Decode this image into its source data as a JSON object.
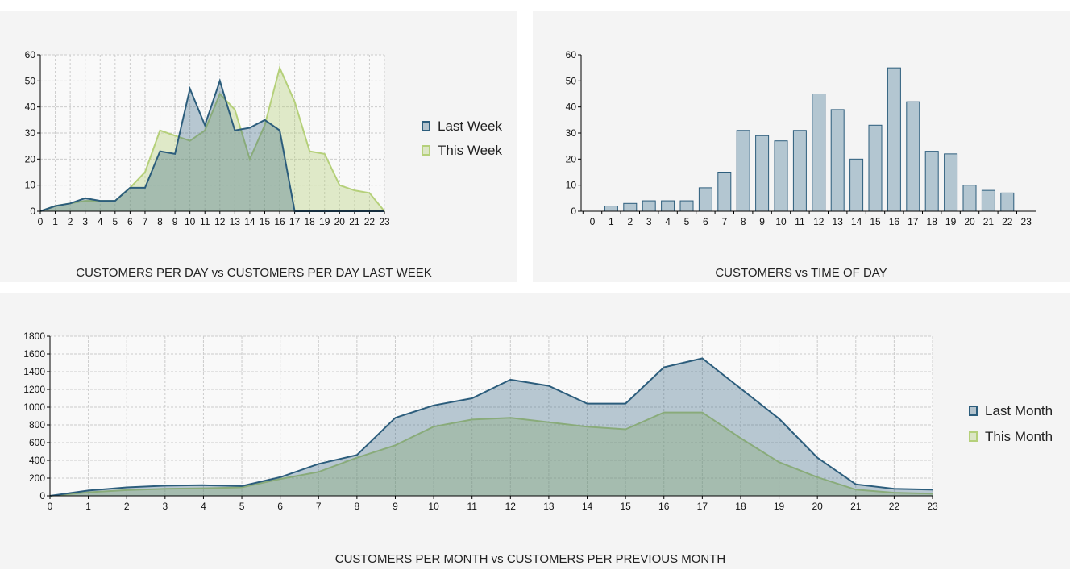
{
  "colors": {
    "last": "#2c5d7c",
    "this": "#b5d07a",
    "bar_fill": "#b3c6d1"
  },
  "chart_data": [
    {
      "type": "area",
      "title": "CUSTOMERS PER DAY vs CUSTOMERS PER DAY LAST WEEK",
      "x": [
        0,
        1,
        2,
        3,
        4,
        5,
        6,
        7,
        8,
        9,
        10,
        11,
        12,
        13,
        14,
        15,
        16,
        17,
        18,
        19,
        20,
        21,
        22,
        23
      ],
      "ylim": [
        0,
        60
      ],
      "yticks": [
        0,
        10,
        20,
        30,
        40,
        50,
        60
      ],
      "grid": true,
      "legend": "right",
      "series": [
        {
          "name": "Last Week",
          "values": [
            0,
            2,
            3,
            5,
            4,
            4,
            9,
            9,
            23,
            22,
            47,
            33,
            50,
            31,
            32,
            35,
            31,
            0,
            0,
            0,
            0,
            0,
            0,
            0
          ]
        },
        {
          "name": "This Week",
          "values": [
            0,
            2,
            3,
            4,
            4,
            4,
            9,
            15,
            31,
            29,
            27,
            31,
            45,
            39,
            20,
            33,
            55,
            42,
            23,
            22,
            10,
            8,
            7,
            0
          ]
        }
      ]
    },
    {
      "type": "bar",
      "title": "CUSTOMERS vs TIME OF DAY",
      "categories": [
        "0",
        "1",
        "2",
        "3",
        "4",
        "5",
        "6",
        "7",
        "8",
        "9",
        "10",
        "11",
        "12",
        "13",
        "14",
        "15",
        "16",
        "17",
        "18",
        "19",
        "20",
        "21",
        "22",
        "23"
      ],
      "values": [
        0,
        2,
        3,
        4,
        4,
        4,
        9,
        15,
        31,
        29,
        27,
        31,
        45,
        39,
        20,
        33,
        55,
        42,
        23,
        22,
        10,
        8,
        7,
        0
      ],
      "ylim": [
        0,
        60
      ],
      "yticks": [
        0,
        10,
        20,
        30,
        40,
        50,
        60
      ],
      "grid": false
    },
    {
      "type": "area",
      "title": "CUSTOMERS PER MONTH vs CUSTOMERS PER PREVIOUS MONTH",
      "x": [
        0,
        1,
        2,
        3,
        4,
        5,
        6,
        7,
        8,
        9,
        10,
        11,
        12,
        13,
        14,
        15,
        16,
        17,
        18,
        19,
        20,
        21,
        22,
        23
      ],
      "ylim": [
        0,
        1800
      ],
      "yticks": [
        0,
        200,
        400,
        600,
        800,
        1000,
        1200,
        1400,
        1600,
        1800
      ],
      "grid": true,
      "legend": "right",
      "series": [
        {
          "name": "Last Month",
          "values": [
            0,
            60,
            95,
            115,
            120,
            110,
            210,
            360,
            460,
            880,
            1020,
            1100,
            1310,
            1240,
            1040,
            1040,
            1450,
            1550,
            1210,
            870,
            430,
            130,
            80,
            70
          ]
        },
        {
          "name": "This Month",
          "values": [
            0,
            40,
            65,
            80,
            85,
            95,
            190,
            270,
            430,
            570,
            780,
            860,
            880,
            830,
            780,
            750,
            940,
            940,
            650,
            380,
            210,
            70,
            35,
            25
          ]
        }
      ]
    }
  ]
}
